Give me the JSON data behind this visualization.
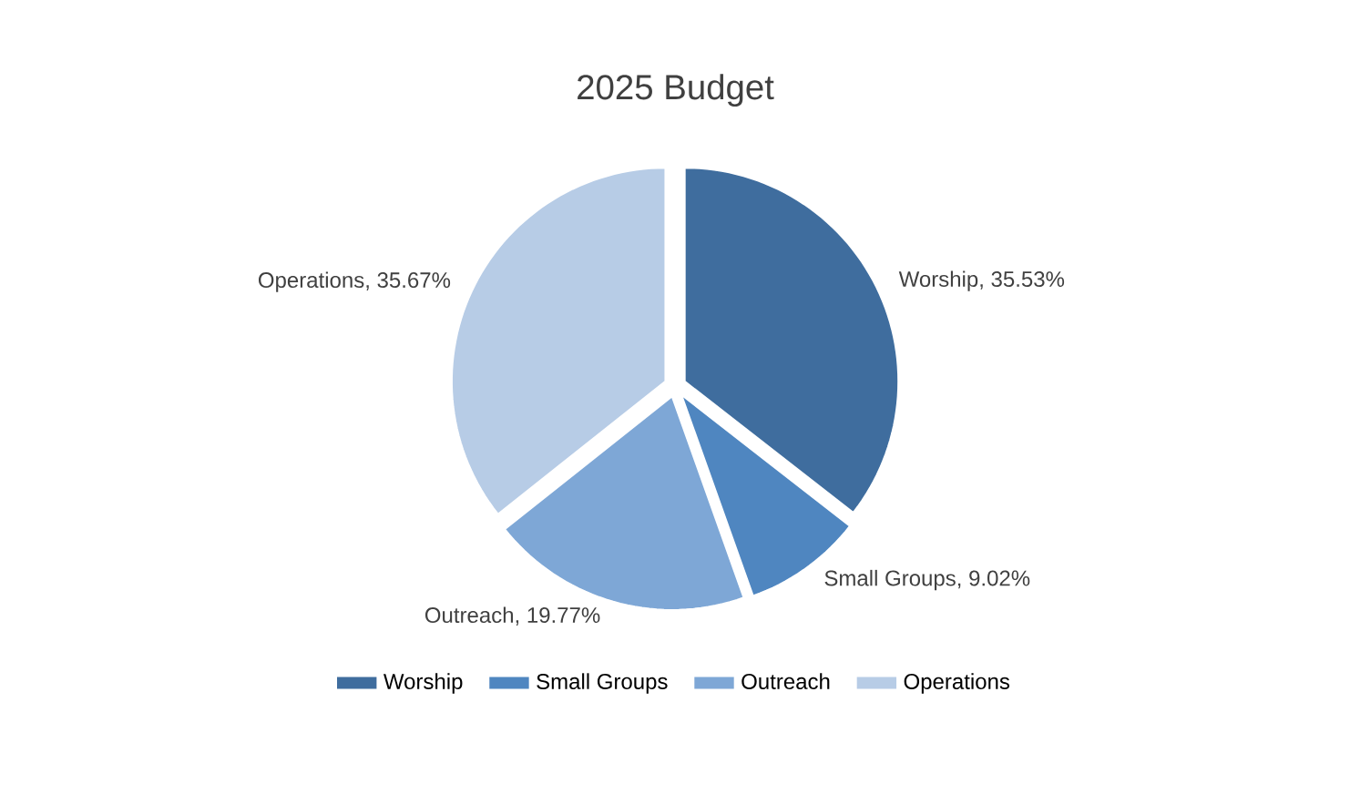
{
  "chart_data": {
    "type": "pie",
    "title": "2025 Budget",
    "categories": [
      "Worship",
      "Small Groups",
      "Outreach",
      "Operations"
    ],
    "values": [
      35.53,
      9.02,
      19.77,
      35.67
    ],
    "value_labels": [
      "Worship, 35.53%",
      "Small Groups, 9.02%",
      "Outreach, 19.77%",
      "Operations, 35.67%"
    ],
    "colors": [
      "#3f6d9e",
      "#4f86c0",
      "#7ea7d6",
      "#b7cce6"
    ],
    "legend": "bottom"
  }
}
